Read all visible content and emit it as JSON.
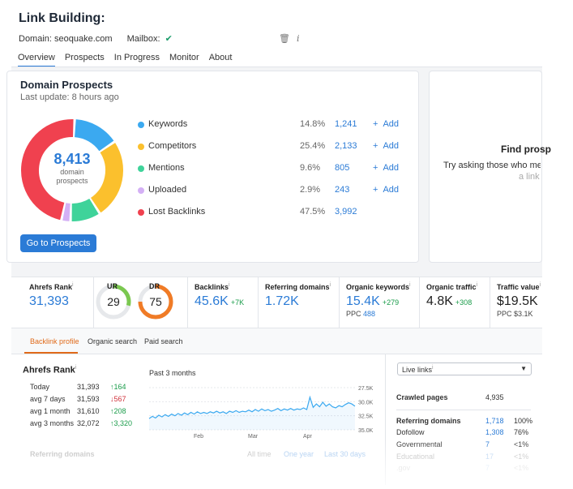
{
  "header": {
    "title": "Link Building:",
    "domain_label": "Domain: seoquake.com",
    "mailbox_label": "Mailbox:",
    "mailbox_status_icon": "check-icon",
    "trash_icon": "trash-icon",
    "info_icon": "info-icon"
  },
  "tabs": [
    {
      "label": "Overview",
      "active": true
    },
    {
      "label": "Prospects"
    },
    {
      "label": "In Progress"
    },
    {
      "label": "Monitor"
    },
    {
      "label": "About"
    }
  ],
  "prospects_card": {
    "title": "Domain Prospects",
    "last_update": "Last update: 8 hours ago",
    "total": "8,413",
    "total_caption_1": "domain",
    "total_caption_2": "prospects",
    "button": "Go to Prospects",
    "add_label": "Add",
    "items": [
      {
        "label": "Keywords",
        "pct": "14.8%",
        "count": "1,241",
        "color": "#3ba9f0",
        "share": 14.8,
        "add": true
      },
      {
        "label": "Competitors",
        "pct": "25.4%",
        "count": "2,133",
        "color": "#fbc02d",
        "share": 25.4,
        "add": true
      },
      {
        "label": "Mentions",
        "pct": "9.6%",
        "count": "805",
        "color": "#3fd39a",
        "share": 9.6,
        "add": true
      },
      {
        "label": "Uploaded",
        "pct": "2.9%",
        "count": "243",
        "color": "#d4b0f5",
        "share": 2.9,
        "add": true
      },
      {
        "label": "Lost Backlinks",
        "pct": "47.5%",
        "count": "3,992",
        "color": "#f0414f",
        "share": 47.5,
        "add": false
      }
    ]
  },
  "find_card": {
    "title": "Find prosp",
    "text": "Try asking those who men",
    "text2": "a link"
  },
  "metrics": {
    "ahrefs_rank": {
      "label": "Ahrefs Rank",
      "value": "31,393"
    },
    "ur": {
      "label": "UR",
      "value": "29",
      "level": 29
    },
    "dr": {
      "label": "DR",
      "value": "75",
      "level": 75
    },
    "backlinks": {
      "label": "Backlinks",
      "value": "45.6K",
      "delta": "+7K"
    },
    "ref_domains": {
      "label": "Referring domains",
      "value": "1.72K"
    },
    "org_keywords": {
      "label": "Organic keywords",
      "value": "15.4K",
      "delta": "+279",
      "sub_label": "PPC",
      "sub_value": "488"
    },
    "org_traffic": {
      "label": "Organic traffic",
      "value": "4.8K",
      "delta": "+308"
    },
    "traffic_value": {
      "label": "Traffic value",
      "value": "$19.5K",
      "sub": "PPC $3.1K"
    }
  },
  "lower_tabs": [
    "Backlink profile",
    "Organic search",
    "Paid search"
  ],
  "rank_box": {
    "title": "Ahrefs Rank",
    "rows": [
      {
        "label": "Today",
        "value": "31,393",
        "delta": "↑164",
        "dir": "up"
      },
      {
        "label": "avg 7 days",
        "value": "31,593",
        "delta": "↓567",
        "dir": "down"
      },
      {
        "label": "avg 1 month",
        "value": "31,610",
        "delta": "↑208",
        "dir": "up"
      },
      {
        "label": "avg 3 months",
        "value": "32,072",
        "delta": "↑3,320",
        "dir": "up"
      }
    ]
  },
  "chart_title": "Past 3 months",
  "chart_data": {
    "type": "line",
    "x_ticks": [
      "Feb",
      "Mar",
      "Apr"
    ],
    "y_ticks": [
      "27.5K",
      "30.0K",
      "32.5K",
      "35.0K"
    ],
    "ylim": [
      35000,
      27500
    ],
    "color": "#3ba9f0",
    "series": [
      {
        "values": [
          33000,
          32600,
          32900,
          32400,
          32700,
          32300,
          32600,
          32200,
          32500,
          32100,
          32400,
          32000,
          32300,
          31900,
          32200,
          31800,
          32100,
          31900,
          32100,
          31800,
          32000,
          31700,
          32000,
          31800,
          32100,
          31700,
          31900,
          31600,
          31900,
          31700,
          31800,
          31500,
          31800,
          31400,
          31700,
          31300,
          31600,
          31400,
          31700,
          31500,
          31200,
          31600,
          31300,
          31500,
          31200,
          31500,
          31300,
          31400,
          31100,
          31400,
          29200,
          31000,
          30400,
          30900,
          30100,
          30800,
          30400,
          30900,
          31100,
          30700,
          30900,
          30500,
          30200,
          30400,
          30800
        ]
      }
    ]
  },
  "right_panel": {
    "select": "Live links",
    "crawled": {
      "label": "Crawled pages",
      "value": "4,935"
    },
    "ref_domains": {
      "label": "Referring domains",
      "value": "1,718",
      "pct": "100%"
    },
    "rows": [
      {
        "label": "Dofollow",
        "value": "1,308",
        "pct": "76%"
      },
      {
        "label": "Governmental",
        "value": "7",
        "pct": "<1%"
      },
      {
        "label": "Educational",
        "value": "17",
        "pct": "<1%"
      },
      {
        "label": ".gov",
        "value": "7",
        "pct": "<1%"
      }
    ]
  },
  "bottom": {
    "label": "Referring domains",
    "opt1": "All time",
    "opt2": "One year",
    "opt3": "Last 30 days"
  }
}
